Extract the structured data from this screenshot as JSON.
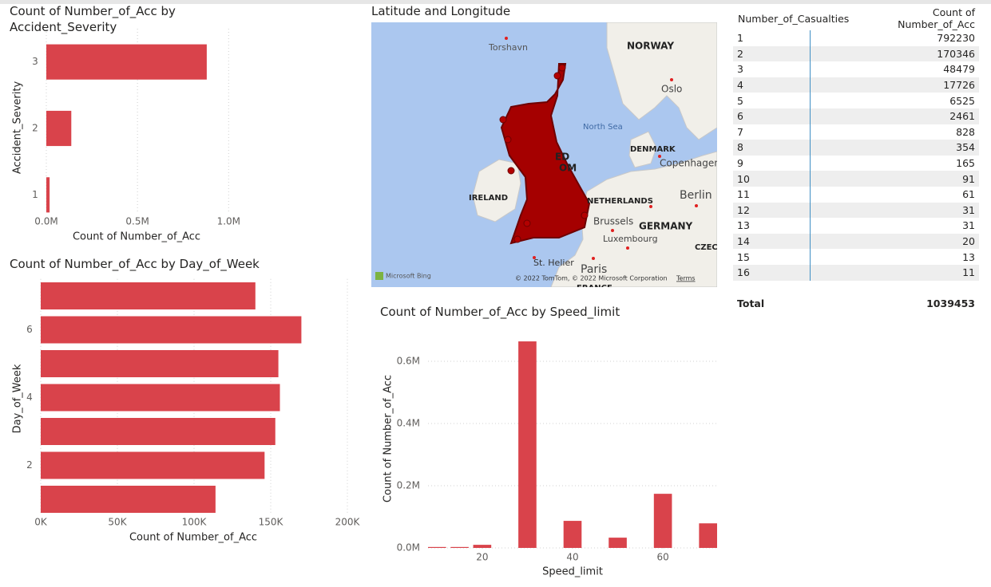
{
  "chart_data": [
    {
      "type": "barh",
      "title": "Count of Number_of_Acc by Accident_Severity",
      "categories": [
        "3",
        "2",
        "1"
      ],
      "values": [
        880000,
        137000,
        18000
      ],
      "color": "#d9434b",
      "xlim": [
        0,
        1060000
      ],
      "xticks": [
        {
          "value": 0,
          "label": "0.0M"
        },
        {
          "value": 500000,
          "label": "0.5M"
        },
        {
          "value": 1000000,
          "label": "1.0M"
        }
      ],
      "xlabel": "Count of Number_of_Acc",
      "ylabel": "Accident_Severity",
      "grid": true
    },
    {
      "type": "barh",
      "title": "Count of Number_of_Acc by Day_of_Week",
      "categories": [
        null,
        "6",
        null,
        "4",
        null,
        "2",
        null
      ],
      "values": [
        140000,
        170000,
        155000,
        156000,
        153000,
        146000,
        114000
      ],
      "color": "#d9434b",
      "xlim": [
        0,
        205000
      ],
      "xticks": [
        {
          "value": 0,
          "label": "0K"
        },
        {
          "value": 50000,
          "label": "50K"
        },
        {
          "value": 100000,
          "label": "100K"
        },
        {
          "value": 150000,
          "label": "150K"
        },
        {
          "value": 200000,
          "label": "200K"
        }
      ],
      "xlabel": "Count of Number_of_Acc",
      "ylabel": "Day_of_Week",
      "grid": true
    },
    {
      "type": "bar",
      "title": "Count of Number_of_Acc by Speed_limit",
      "x": [
        10,
        15,
        20,
        30,
        40,
        50,
        60,
        70
      ],
      "values": [
        3000,
        3000,
        10000,
        664000,
        87000,
        33000,
        174000,
        79000
      ],
      "color": "#d9434b",
      "xlim": [
        8,
        72
      ],
      "xticks": [
        20,
        40,
        60
      ],
      "ylim": [
        0,
        680000
      ],
      "yticks": [
        {
          "value": 0,
          "label": "0.0M"
        },
        {
          "value": 200000,
          "label": "0.2M"
        },
        {
          "value": 400000,
          "label": "0.4M"
        },
        {
          "value": 600000,
          "label": "0.6M"
        }
      ],
      "xlabel": "Speed_limit",
      "ylabel": "Count of Number_of_Acc",
      "grid": true
    }
  ],
  "map": {
    "title": "Latitude and Longitude",
    "labels": [
      "Torshavn",
      "NORWAY",
      "Oslo",
      "North Sea",
      "DENMARK",
      "Copenhagen",
      "IRELAND",
      "ED",
      "OM",
      "Berlin",
      "NETHERLANDS",
      "Brussels",
      "GERMANY",
      "Luxembourg",
      "St. Helier",
      "Paris",
      "CZEC",
      "FRANCE"
    ],
    "attribution": "© 2022 TomTom, © 2022 Microsoft Corporation",
    "terms": "Terms",
    "logo": "Microsoft Bing"
  },
  "table": {
    "columns": [
      "Number_of_Casualties",
      "Count of Number_of_Acc"
    ],
    "rows": [
      [
        1,
        792230
      ],
      [
        2,
        170346
      ],
      [
        3,
        48479
      ],
      [
        4,
        17726
      ],
      [
        5,
        6525
      ],
      [
        6,
        2461
      ],
      [
        7,
        828
      ],
      [
        8,
        354
      ],
      [
        9,
        165
      ],
      [
        10,
        91
      ],
      [
        11,
        61
      ],
      [
        12,
        31
      ],
      [
        13,
        31
      ],
      [
        14,
        20
      ],
      [
        15,
        13
      ],
      [
        16,
        11
      ]
    ],
    "total": [
      "Total",
      1039453
    ]
  }
}
